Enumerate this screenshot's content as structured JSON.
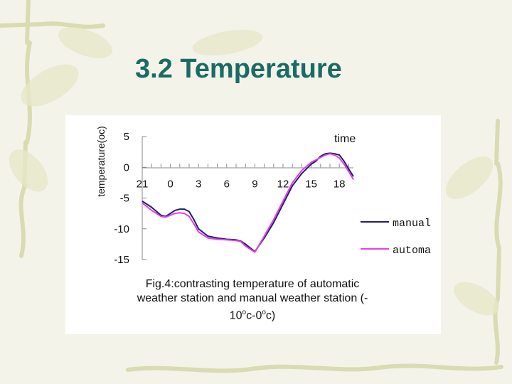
{
  "slide": {
    "title": "3.2 Temperature"
  },
  "caption": {
    "line1": "Fig.4:contrasting temperature of automatic",
    "line2": "weather station and manual weather station (-",
    "line3_a": "10",
    "deg1": "o",
    "line3_b": "c-0",
    "deg2": "o",
    "line3_c": "c)"
  },
  "colors": {
    "title": "#1a6b66",
    "manual": "#1f1f6e",
    "automatic": "#e83ee6",
    "decoration": "#d9dcb0"
  },
  "chart_data": {
    "type": "line",
    "xlabel": "time",
    "ylabel": "temperature(oc)",
    "x_tick_labels": [
      "21",
      "0",
      "3",
      "6",
      "9",
      "12",
      "15",
      "18"
    ],
    "x_tick_positions": [
      0,
      3,
      6,
      9,
      12,
      15,
      18,
      21
    ],
    "xlim": [
      0,
      22.5
    ],
    "ylim": [
      -15,
      5
    ],
    "y_ticks": [
      5,
      0,
      -5,
      -10,
      -15
    ],
    "grid": false,
    "legend_position": "right",
    "series": [
      {
        "name": "manual",
        "x": [
          0,
          1,
          2,
          2.5,
          3,
          3.5,
          4,
          4.5,
          5,
          5.5,
          6,
          7,
          8,
          9,
          10,
          10.5,
          11,
          12,
          13,
          14,
          15,
          16,
          17,
          18,
          18.5,
          19,
          19.5,
          20,
          20.5,
          21,
          21.5,
          22,
          22.5
        ],
        "y": [
          -5.5,
          -6.5,
          -7.8,
          -8.0,
          -7.5,
          -7.0,
          -6.8,
          -6.8,
          -7.2,
          -8.5,
          -10.0,
          -11.2,
          -11.5,
          -11.7,
          -11.8,
          -12.0,
          -12.5,
          -13.7,
          -11.5,
          -9.0,
          -6.0,
          -3.0,
          -1.0,
          0.5,
          1.0,
          1.8,
          2.2,
          2.3,
          2.2,
          2.0,
          1.0,
          -0.3,
          -1.5
        ]
      },
      {
        "name": "automa",
        "x": [
          0,
          1,
          2,
          2.5,
          3,
          3.5,
          4,
          4.5,
          5,
          5.5,
          6,
          7,
          8,
          9,
          10,
          10.5,
          11,
          12,
          13,
          14,
          15,
          16,
          17,
          18,
          18.5,
          19,
          19.5,
          20,
          20.5,
          21,
          21.5,
          22,
          22.5
        ],
        "y": [
          -5.8,
          -7.0,
          -8.0,
          -8.1,
          -7.8,
          -7.5,
          -7.4,
          -7.5,
          -8.0,
          -9.2,
          -10.5,
          -11.5,
          -11.7,
          -11.8,
          -11.9,
          -12.1,
          -12.8,
          -13.8,
          -11.2,
          -8.5,
          -5.5,
          -2.5,
          -0.5,
          0.8,
          1.2,
          1.6,
          2.0,
          2.2,
          2.0,
          1.5,
          0.5,
          -0.7,
          -2.0
        ]
      }
    ]
  }
}
